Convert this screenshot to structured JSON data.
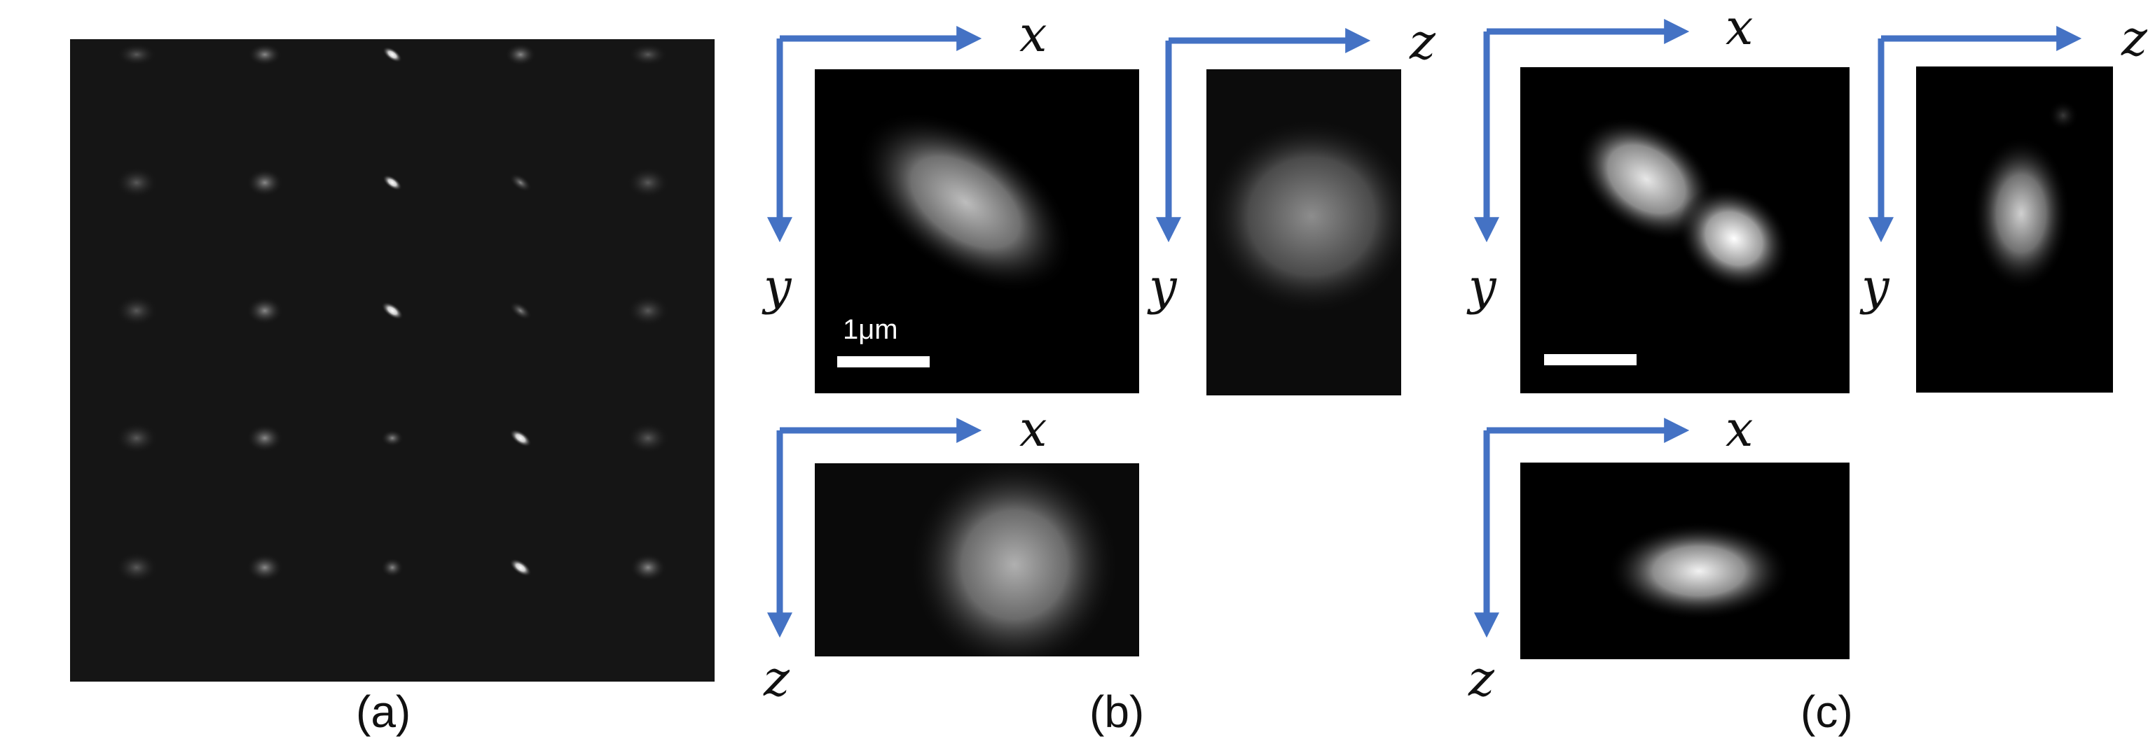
{
  "panels": {
    "a": {
      "caption": "(a)"
    },
    "b": {
      "caption": "(b)",
      "scale_bar_label": "1μm"
    },
    "c": {
      "caption": "(c)"
    }
  },
  "axes": {
    "x": "x",
    "y": "y",
    "z": "z"
  },
  "colors": {
    "arrow": "#4472C4",
    "background": "#000000"
  }
}
